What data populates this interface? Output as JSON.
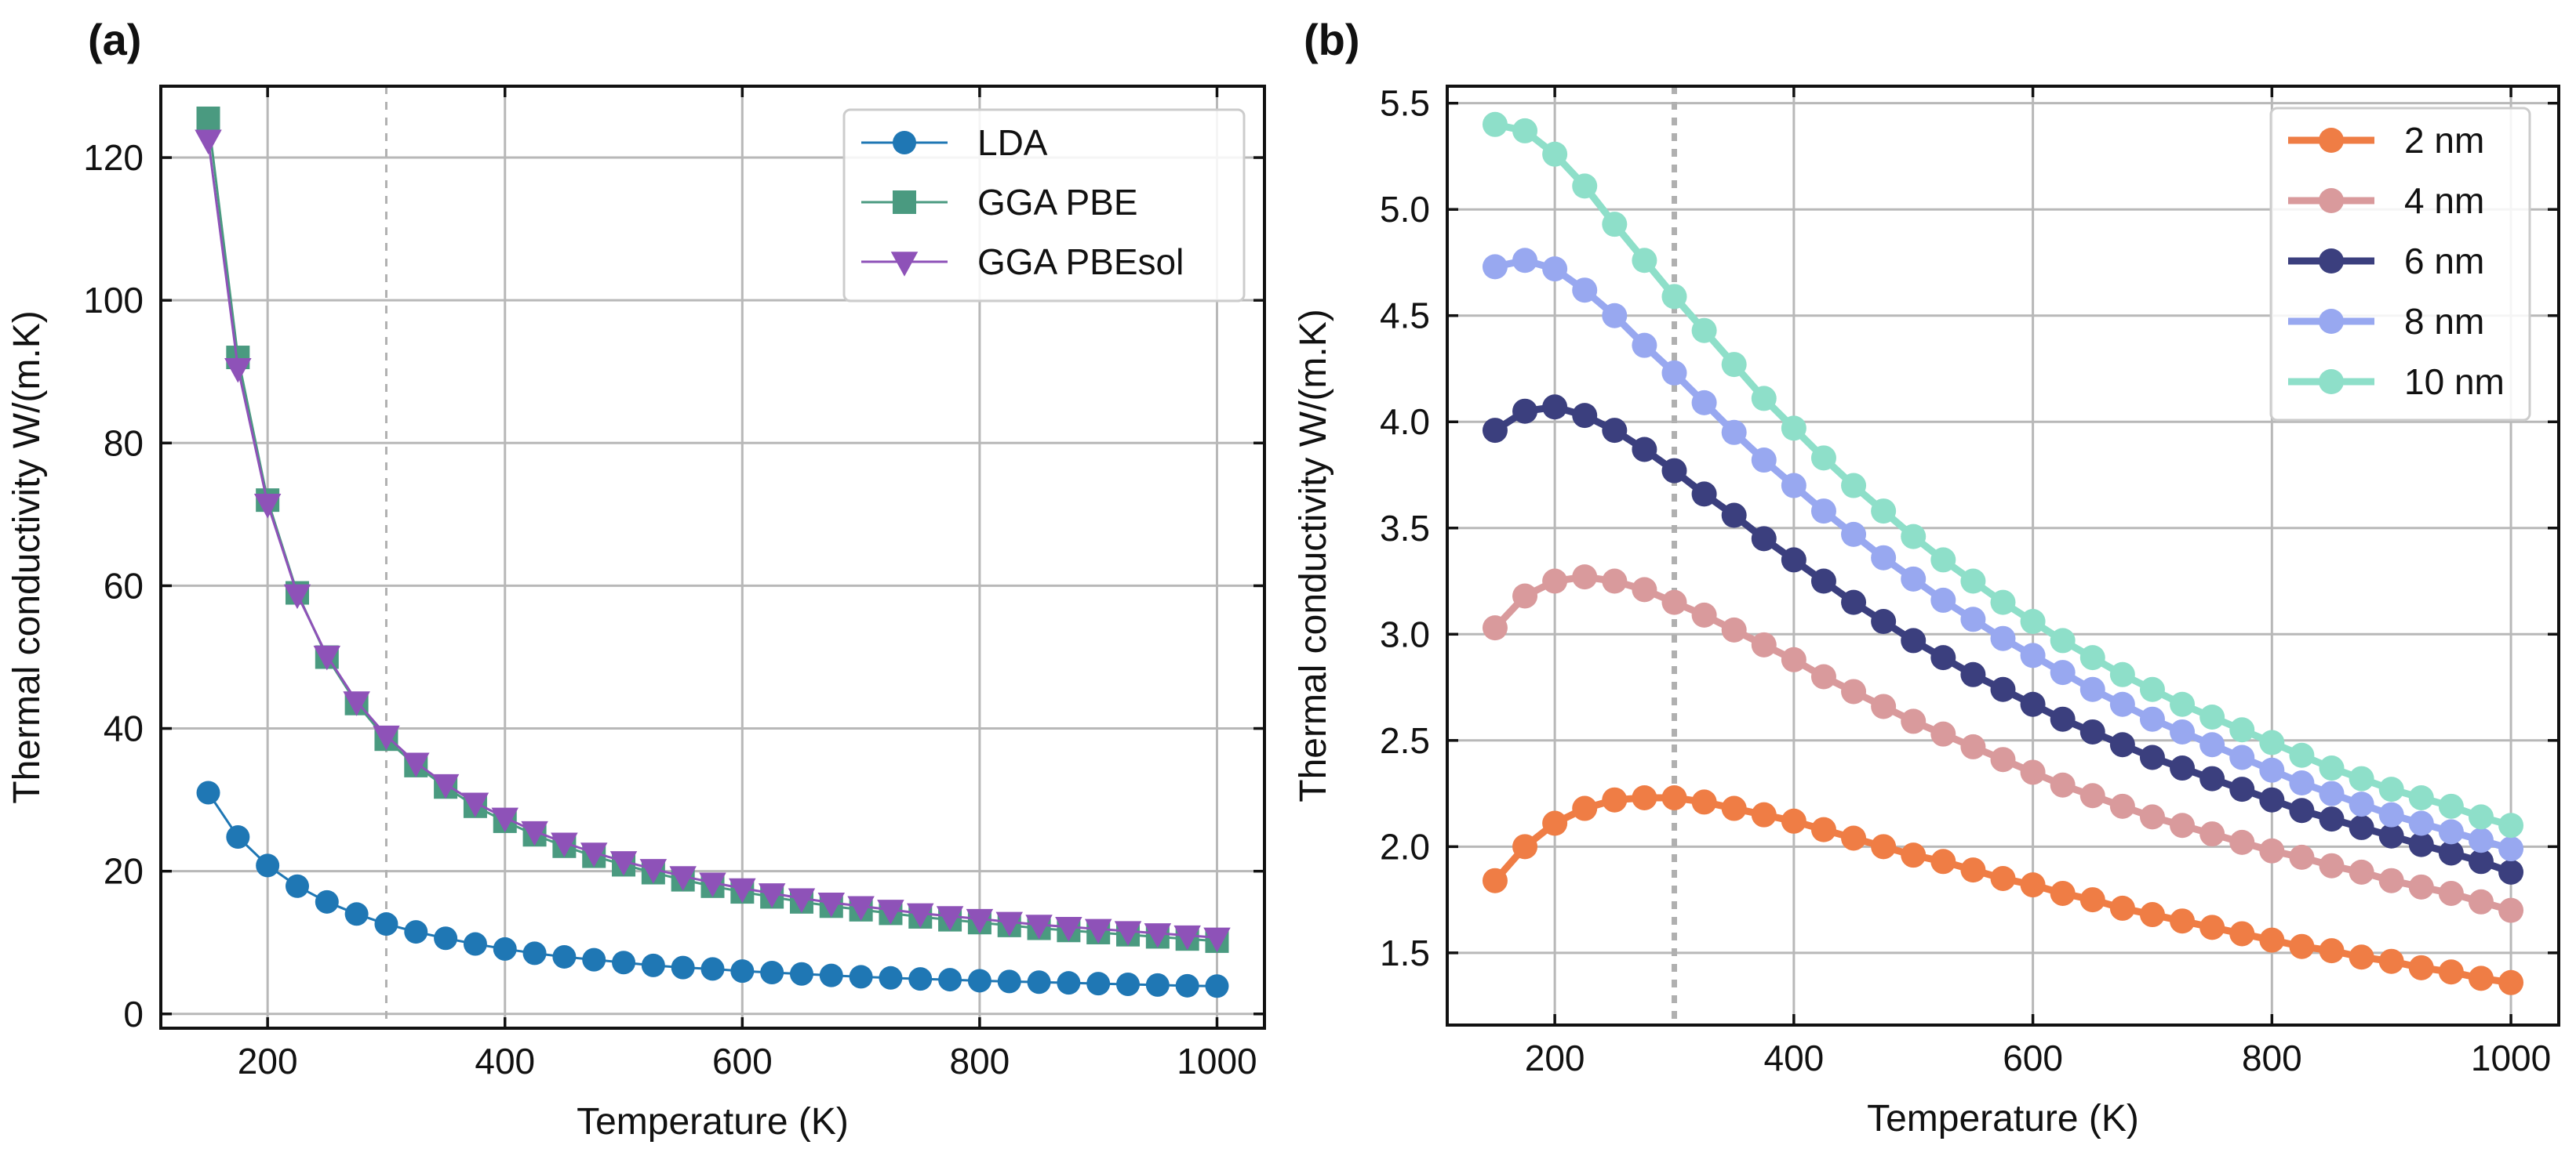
{
  "chart_data": [
    {
      "type": "line",
      "panel_label": "(a)",
      "title": "",
      "xlabel": "Temperature (K)",
      "ylabel": "Thermal conductivity W/(m.K)",
      "xlim": [
        110,
        1040
      ],
      "ylim": [
        -2,
        130
      ],
      "xticks": [
        200,
        400,
        600,
        800,
        1000
      ],
      "yticks": [
        0,
        20,
        40,
        60,
        80,
        100,
        120
      ],
      "xtick_labels": [
        "200",
        "400",
        "600",
        "800",
        "1000"
      ],
      "ytick_labels": [
        "0",
        "20",
        "40",
        "60",
        "80",
        "100",
        "120"
      ],
      "grid": true,
      "vertical_reference_line": 300,
      "legend_position": "top-right",
      "x": [
        150,
        175,
        200,
        225,
        250,
        275,
        300,
        325,
        350,
        375,
        400,
        425,
        450,
        475,
        500,
        525,
        550,
        575,
        600,
        625,
        650,
        675,
        700,
        725,
        750,
        775,
        800,
        825,
        850,
        875,
        900,
        925,
        950,
        975,
        1000
      ],
      "series": [
        {
          "name": "LDA",
          "marker": "circle",
          "color": "#1f77b4",
          "values": [
            31.0,
            24.8,
            20.8,
            17.9,
            15.7,
            14.0,
            12.6,
            11.5,
            10.6,
            9.8,
            9.1,
            8.5,
            8.0,
            7.6,
            7.2,
            6.8,
            6.5,
            6.3,
            6.0,
            5.8,
            5.6,
            5.4,
            5.2,
            5.05,
            4.9,
            4.8,
            4.65,
            4.55,
            4.45,
            4.35,
            4.25,
            4.15,
            4.05,
            3.95,
            3.9
          ]
        },
        {
          "name": "GGA PBE",
          "marker": "square",
          "color": "#4a9a80",
          "values": [
            125.5,
            92.0,
            72.0,
            59.0,
            50.0,
            43.5,
            38.5,
            34.8,
            31.8,
            29.1,
            27.0,
            25.1,
            23.5,
            22.1,
            20.9,
            19.8,
            18.8,
            17.9,
            17.1,
            16.4,
            15.7,
            15.1,
            14.6,
            14.1,
            13.6,
            13.2,
            12.8,
            12.4,
            12.0,
            11.7,
            11.4,
            11.1,
            10.8,
            10.5,
            10.2
          ]
        },
        {
          "name": "GGA PBEsol",
          "marker": "triangle-down",
          "color": "#8e52b8",
          "values": [
            122.5,
            90.5,
            71.5,
            58.8,
            50.2,
            43.8,
            39.0,
            35.2,
            32.2,
            29.6,
            27.5,
            25.6,
            24.0,
            22.6,
            21.4,
            20.3,
            19.3,
            18.4,
            17.6,
            16.9,
            16.2,
            15.6,
            15.1,
            14.6,
            14.1,
            13.7,
            13.3,
            12.9,
            12.5,
            12.2,
            11.9,
            11.6,
            11.3,
            11.0,
            10.7
          ]
        }
      ]
    },
    {
      "type": "line",
      "panel_label": "(b)",
      "title": "",
      "xlabel": "Temperature (K)",
      "ylabel": "Thermal conductivity W/(m.K)",
      "xlim": [
        110,
        1040
      ],
      "ylim": [
        1.16,
        5.58
      ],
      "xticks": [
        200,
        400,
        600,
        800,
        1000
      ],
      "yticks": [
        1.5,
        2.0,
        2.5,
        3.0,
        3.5,
        4.0,
        4.5,
        5.0,
        5.5
      ],
      "xtick_labels": [
        "200",
        "400",
        "600",
        "800",
        "1000"
      ],
      "ytick_labels": [
        "1.5",
        "2.0",
        "2.5",
        "3.0",
        "3.5",
        "4.0",
        "4.5",
        "5.0",
        "5.5"
      ],
      "grid": true,
      "vertical_reference_line": 300,
      "legend_position": "top-right",
      "x": [
        150,
        175,
        200,
        225,
        250,
        275,
        300,
        325,
        350,
        375,
        400,
        425,
        450,
        475,
        500,
        525,
        550,
        575,
        600,
        625,
        650,
        675,
        700,
        725,
        750,
        775,
        800,
        825,
        850,
        875,
        900,
        925,
        950,
        975,
        1000
      ],
      "series": [
        {
          "name": "2 nm",
          "marker": "circle",
          "color": "#ef7d45",
          "values": [
            1.84,
            2.0,
            2.11,
            2.18,
            2.22,
            2.23,
            2.23,
            2.21,
            2.18,
            2.15,
            2.12,
            2.08,
            2.04,
            2.0,
            1.96,
            1.93,
            1.89,
            1.85,
            1.82,
            1.78,
            1.75,
            1.71,
            1.68,
            1.65,
            1.62,
            1.59,
            1.56,
            1.53,
            1.51,
            1.48,
            1.46,
            1.43,
            1.41,
            1.38,
            1.36
          ]
        },
        {
          "name": "4 nm",
          "marker": "circle",
          "color": "#d99a9c",
          "values": [
            3.03,
            3.18,
            3.25,
            3.27,
            3.25,
            3.21,
            3.15,
            3.09,
            3.02,
            2.95,
            2.88,
            2.8,
            2.73,
            2.66,
            2.59,
            2.53,
            2.47,
            2.41,
            2.35,
            2.29,
            2.24,
            2.19,
            2.14,
            2.1,
            2.06,
            2.02,
            1.98,
            1.95,
            1.91,
            1.88,
            1.84,
            1.81,
            1.78,
            1.74,
            1.7
          ]
        },
        {
          "name": "6 nm",
          "marker": "circle",
          "color": "#3b3f7e",
          "values": [
            3.96,
            4.05,
            4.07,
            4.03,
            3.96,
            3.87,
            3.77,
            3.66,
            3.56,
            3.45,
            3.35,
            3.25,
            3.15,
            3.06,
            2.97,
            2.89,
            2.81,
            2.74,
            2.67,
            2.6,
            2.54,
            2.48,
            2.42,
            2.37,
            2.32,
            2.27,
            2.22,
            2.17,
            2.13,
            2.09,
            2.05,
            2.01,
            1.97,
            1.93,
            1.88
          ]
        },
        {
          "name": "8 nm",
          "marker": "circle",
          "color": "#98a8f0",
          "values": [
            4.73,
            4.76,
            4.72,
            4.62,
            4.5,
            4.36,
            4.23,
            4.09,
            3.95,
            3.82,
            3.7,
            3.58,
            3.47,
            3.36,
            3.26,
            3.16,
            3.07,
            2.98,
            2.9,
            2.82,
            2.74,
            2.67,
            2.6,
            2.54,
            2.48,
            2.42,
            2.36,
            2.3,
            2.25,
            2.2,
            2.15,
            2.11,
            2.07,
            2.03,
            1.99
          ]
        },
        {
          "name": "10 nm",
          "marker": "circle",
          "color": "#8edfc9",
          "values": [
            5.4,
            5.37,
            5.26,
            5.11,
            4.93,
            4.76,
            4.59,
            4.43,
            4.27,
            4.11,
            3.97,
            3.83,
            3.7,
            3.58,
            3.46,
            3.35,
            3.25,
            3.15,
            3.06,
            2.97,
            2.89,
            2.81,
            2.74,
            2.67,
            2.61,
            2.55,
            2.49,
            2.43,
            2.37,
            2.32,
            2.27,
            2.23,
            2.19,
            2.14,
            2.1
          ]
        }
      ]
    }
  ]
}
